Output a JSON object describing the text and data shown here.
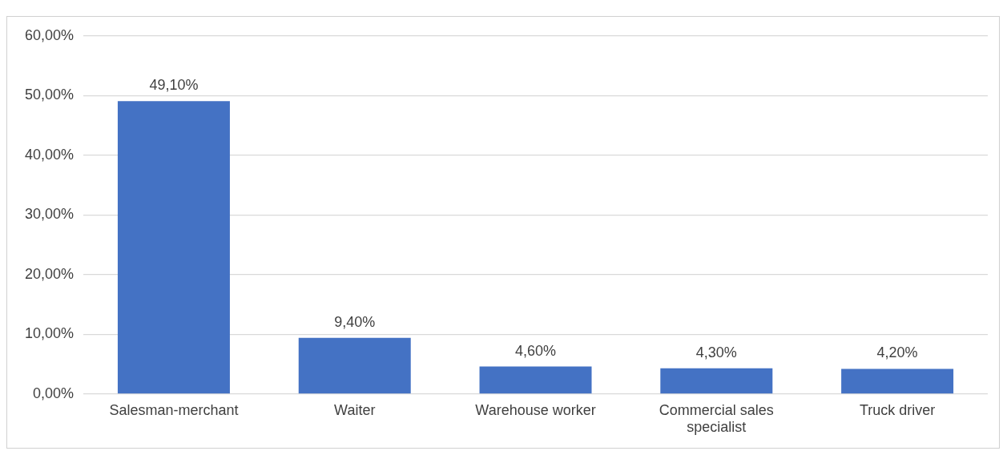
{
  "chart_data": {
    "type": "bar",
    "categories": [
      "Salesman-merchant",
      "Waiter",
      "Warehouse worker",
      "Commercial sales specialist",
      "Truck driver"
    ],
    "values": [
      49.1,
      9.4,
      4.6,
      4.3,
      4.2
    ],
    "value_labels": [
      "49,10%",
      "9,40%",
      "4,60%",
      "4,30%",
      "4,20%"
    ],
    "color": "#4472c4",
    "ylim": [
      0,
      60
    ],
    "yticks": [
      {
        "value": 0,
        "label": "0,00%"
      },
      {
        "value": 10,
        "label": "10,00%"
      },
      {
        "value": 20,
        "label": "20,00%"
      },
      {
        "value": 30,
        "label": "30,00%"
      },
      {
        "value": 40,
        "label": "40,00%"
      },
      {
        "value": 50,
        "label": "50,00%"
      },
      {
        "value": 60,
        "label": "60,00%"
      }
    ],
    "grid": "y",
    "legend": false
  }
}
